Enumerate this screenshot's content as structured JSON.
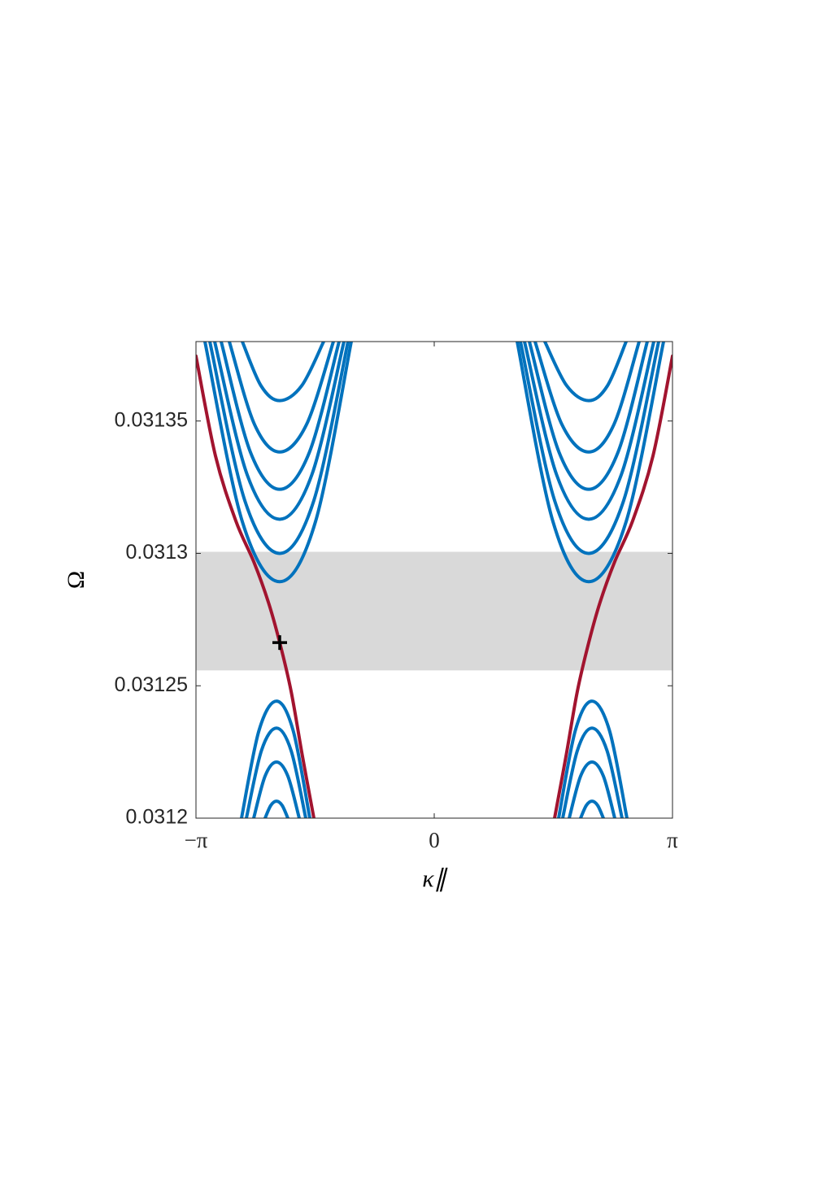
{
  "chart_data": {
    "type": "line",
    "xlabel": "κ∥",
    "ylabel": "Ω",
    "xlim": [
      -3.14159,
      3.14159
    ],
    "xticks": [
      {
        "value": -3.14159,
        "label": "−π"
      },
      0,
      {
        "value": 3.14159,
        "label": "π"
      }
    ],
    "ylim": [
      0.0312,
      0.03138
    ],
    "yticks": [
      0.0312,
      0.03125,
      0.0313,
      0.03135
    ],
    "band": [
      0.0312558,
      0.0313006
    ],
    "band_color": "#d9d9d9",
    "marker": {
      "x": -2.0372,
      "y": 0.0312663,
      "color": "#000000"
    },
    "series": [
      {
        "color": "#0072bd",
        "x": [
          -3.0237,
          -2.5305,
          -2.0372,
          -1.5655,
          -1.0937
        ],
        "values": [
          0.03138,
          0.031312,
          0.0312893,
          0.031312,
          0.03138
        ]
      },
      {
        "color": "#0072bd",
        "x": [
          -2.9593,
          -2.4983,
          -2.0372,
          -1.5869,
          -1.1366
        ],
        "values": [
          0.03138,
          0.03132,
          0.0313,
          0.03132,
          0.03138
        ]
      },
      {
        "color": "#0072bd",
        "x": [
          -2.895,
          -2.4661,
          -2.0372,
          -1.6137,
          -1.1902
        ],
        "values": [
          0.03138,
          0.0313297,
          0.0313129,
          0.0313297,
          0.03138
        ]
      },
      {
        "color": "#0072bd",
        "x": [
          -2.8092,
          -2.4232,
          -2.0372,
          -1.6459,
          -1.2545
        ],
        "values": [
          0.03138,
          0.0313382,
          0.0313242,
          0.0313382,
          0.03138
        ]
      },
      {
        "color": "#0072bd",
        "x": [
          -2.702,
          -2.3696,
          -2.0372,
          -1.6834,
          -1.3296
        ],
        "values": [
          0.03138,
          0.0313487,
          0.0313383,
          0.0313487,
          0.03138
        ]
      },
      {
        "color": "#0072bd",
        "x": [
          -2.5305,
          -2.2839,
          -2.0372,
          -1.7477,
          -1.4582
        ],
        "values": [
          0.03138,
          0.0313633,
          0.0313577,
          0.0313633,
          0.03138
        ]
      },
      {
        "color": "#0072bd",
        "x": [
          3.0237,
          2.5305,
          2.0372,
          1.5655,
          1.0937
        ],
        "values": [
          0.03138,
          0.031312,
          0.0312893,
          0.031312,
          0.03138
        ]
      },
      {
        "color": "#0072bd",
        "x": [
          2.9593,
          2.4983,
          2.0372,
          1.5869,
          1.1366
        ],
        "values": [
          0.03138,
          0.03132,
          0.0313,
          0.03132,
          0.03138
        ]
      },
      {
        "color": "#0072bd",
        "x": [
          2.895,
          2.4661,
          2.0372,
          1.6137,
          1.1902
        ],
        "values": [
          0.03138,
          0.0313297,
          0.0313129,
          0.0313297,
          0.03138
        ]
      },
      {
        "color": "#0072bd",
        "x": [
          2.8092,
          2.4232,
          2.0372,
          1.6459,
          1.2545
        ],
        "values": [
          0.03138,
          0.0313382,
          0.0313242,
          0.0313382,
          0.03138
        ]
      },
      {
        "color": "#0072bd",
        "x": [
          2.702,
          2.3696,
          2.0372,
          1.6834,
          1.3296
        ],
        "values": [
          0.03138,
          0.0313487,
          0.0313383,
          0.0313487,
          0.03138
        ]
      },
      {
        "color": "#0072bd",
        "x": [
          2.5305,
          2.2839,
          2.0372,
          1.7477,
          1.4582
        ],
        "values": [
          0.03138,
          0.0313633,
          0.0313577,
          0.0313633,
          0.03138
        ]
      },
      {
        "color": "#0072bd",
        "x": [
          -2.5412,
          -2.3107,
          -2.0802,
          -1.8604,
          -1.6405
        ],
        "values": [
          0.0312,
          0.0312331,
          0.0312442,
          0.0312331,
          0.0312
        ]
      },
      {
        "color": "#0072bd",
        "x": [
          -2.4768,
          -2.2785,
          -2.0802,
          -1.8872,
          -1.6941
        ],
        "values": [
          0.0312,
          0.0312255,
          0.031234,
          0.0312255,
          0.0312
        ]
      },
      {
        "color": "#0072bd",
        "x": [
          -2.3803,
          -2.2303,
          -2.0802,
          -1.9301,
          -1.7799
        ],
        "values": [
          0.0312,
          0.0312159,
          0.0312212,
          0.0312159,
          0.0312
        ]
      },
      {
        "color": "#0072bd",
        "x": [
          -2.2302,
          -2.1552,
          -2.0802,
          -2.0051,
          -1.93
        ],
        "values": [
          0.0312,
          0.0312048,
          0.0312064,
          0.0312048,
          0.0312
        ]
      },
      {
        "color": "#0072bd",
        "x": [
          2.5412,
          2.3107,
          2.0802,
          1.8604,
          1.6405
        ],
        "values": [
          0.0312,
          0.0312331,
          0.0312442,
          0.0312331,
          0.0312
        ]
      },
      {
        "color": "#0072bd",
        "x": [
          2.4768,
          2.2785,
          2.0802,
          1.8872,
          1.6941
        ],
        "values": [
          0.0312,
          0.0312255,
          0.031234,
          0.0312255,
          0.0312
        ]
      },
      {
        "color": "#0072bd",
        "x": [
          2.3803,
          2.2303,
          2.0802,
          1.9301,
          1.7799
        ],
        "values": [
          0.0312,
          0.0312159,
          0.0312212,
          0.0312159,
          0.0312
        ]
      },
      {
        "color": "#0072bd",
        "x": [
          2.2302,
          2.1552,
          2.0802,
          2.0051,
          1.93
        ],
        "values": [
          0.0312,
          0.0312048,
          0.0312064,
          0.0312048,
          0.0312
        ]
      },
      {
        "color": "#a2142f",
        "x": [
          -3.1416,
          -2.8843,
          -2.6162,
          -2.3803,
          -2.1873,
          -2.0372,
          -1.8871,
          -1.737,
          -1.5869
        ],
        "values": [
          0.0313745,
          0.0313368,
          0.0313123,
          0.0312969,
          0.0312816,
          0.0312663,
          0.0312479,
          0.0312233,
          0.0312
        ]
      },
      {
        "color": "#a2142f",
        "x": [
          3.1416,
          2.8843,
          2.6162,
          2.3803,
          2.1873,
          2.0372,
          1.8871,
          1.737,
          1.5869
        ],
        "values": [
          0.0313745,
          0.0313368,
          0.0313123,
          0.0312969,
          0.0312816,
          0.0312663,
          0.0312479,
          0.0312233,
          0.0312
        ]
      }
    ]
  }
}
